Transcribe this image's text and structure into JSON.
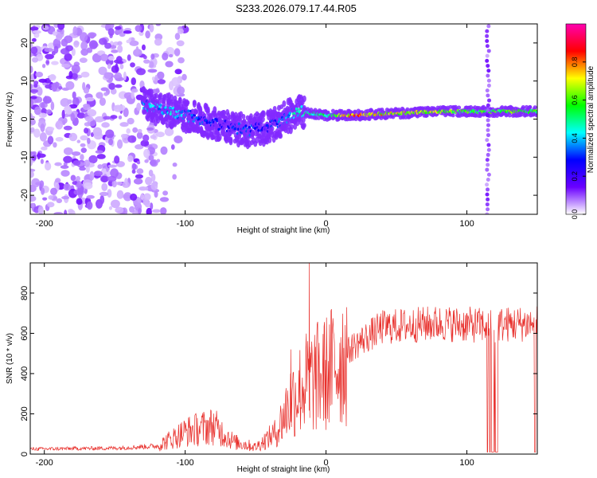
{
  "title": "S233.2026.079.17.44.R05",
  "colors": {
    "snr_line": "#e8302c",
    "axis": "#000000"
  },
  "chart_data": [
    {
      "type": "heatmap",
      "name": "spectrogram",
      "xlabel": "Height of straight line (km)",
      "ylabel": "Frequency (Hz)",
      "xlim": [
        -210,
        150
      ],
      "ylim": [
        -25,
        25
      ],
      "x_ticks": [
        -200,
        -100,
        0,
        100
      ],
      "y_ticks": [
        -20,
        -10,
        0,
        10,
        20
      ],
      "colorbar": {
        "label": "Normalized spectral amplitude",
        "range": [
          0,
          1
        ],
        "ticks": [
          "0.0",
          "0.2",
          "0.4",
          "0.6",
          "0.8"
        ],
        "tick_values": [
          0.0,
          0.2,
          0.4,
          0.6,
          0.8
        ],
        "colormap": [
          "#ffffff",
          "#6a00ff",
          "#0000ff",
          "#00ffff",
          "#00ff00",
          "#ffff00",
          "#ff0000",
          "#ff00b0"
        ]
      },
      "ridge": [
        {
          "x": -130,
          "freq": 4,
          "amp": 0.4
        },
        {
          "x": -110,
          "freq": 2,
          "amp": 0.45
        },
        {
          "x": -90,
          "freq": 0,
          "amp": 0.35
        },
        {
          "x": -70,
          "freq": -2,
          "amp": 0.3
        },
        {
          "x": -55,
          "freq": -3,
          "amp": 0.35
        },
        {
          "x": -40,
          "freq": -2,
          "amp": 0.3
        },
        {
          "x": -20,
          "freq": 2,
          "amp": 0.5
        },
        {
          "x": 0,
          "freq": 1,
          "amp": 0.55
        },
        {
          "x": 20,
          "freq": 1,
          "amp": 0.85
        },
        {
          "x": 50,
          "freq": 1.5,
          "amp": 0.75
        },
        {
          "x": 80,
          "freq": 2,
          "amp": 0.7
        },
        {
          "x": 110,
          "freq": 2,
          "amp": 0.6
        },
        {
          "x": 130,
          "freq": 2,
          "amp": 0.65
        },
        {
          "x": 150,
          "freq": 2,
          "amp": 0.6
        }
      ],
      "noise_region_x": [
        -210,
        -120
      ],
      "vertical_band_x": 115
    },
    {
      "type": "line",
      "name": "snr",
      "xlabel": "Height of straight line (km)",
      "ylabel": "SNR (10 * v/v)",
      "xlim": [
        -210,
        150
      ],
      "ylim": [
        0,
        950
      ],
      "x_ticks": [
        -200,
        -100,
        0,
        100
      ],
      "y_ticks": [
        0,
        200,
        400,
        600,
        800
      ],
      "trend": [
        {
          "x": -210,
          "y": 25
        },
        {
          "x": -150,
          "y": 30
        },
        {
          "x": -120,
          "y": 40
        },
        {
          "x": -100,
          "y": 110
        },
        {
          "x": -80,
          "y": 140
        },
        {
          "x": -65,
          "y": 60
        },
        {
          "x": -50,
          "y": 35
        },
        {
          "x": -35,
          "y": 110
        },
        {
          "x": -25,
          "y": 270
        },
        {
          "x": -15,
          "y": 350
        },
        {
          "x": 0,
          "y": 400
        },
        {
          "x": 20,
          "y": 540
        },
        {
          "x": 40,
          "y": 630
        },
        {
          "x": 80,
          "y": 650
        },
        {
          "x": 110,
          "y": 640
        },
        {
          "x": 150,
          "y": 650
        }
      ],
      "spikes": [
        {
          "x": -12,
          "y": 950
        },
        {
          "x": -25,
          "y": 520
        }
      ],
      "dropouts": [
        {
          "x_start": 114,
          "x_end": 122,
          "y": 10
        },
        {
          "x_start": 147,
          "x_end": 149,
          "y": 10
        }
      ]
    }
  ]
}
